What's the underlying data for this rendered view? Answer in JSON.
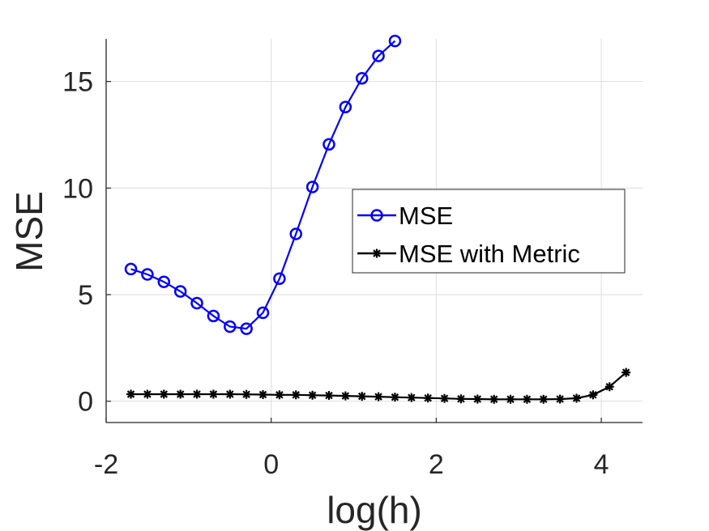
{
  "chart_data": {
    "type": "line",
    "title": "",
    "xlabel": "log(h)",
    "ylabel": "MSE",
    "xlim": [
      -2,
      4.5
    ],
    "ylim": [
      -1,
      17
    ],
    "xticks": [
      -2,
      0,
      2,
      4
    ],
    "yticks": [
      0,
      5,
      10,
      15
    ],
    "xtick_labels": [
      "-2",
      "0",
      "2",
      "4"
    ],
    "ytick_labels": [
      "0",
      "5",
      "10",
      "15"
    ],
    "grid": true,
    "legend_position": "center-right",
    "series": [
      {
        "name": "MSE",
        "color": "#0000ff",
        "marker": "circle",
        "points": [
          [
            -1.7,
            6.2
          ],
          [
            -1.5,
            5.95
          ],
          [
            -1.3,
            5.6
          ],
          [
            -1.1,
            5.15
          ],
          [
            -0.9,
            4.6
          ],
          [
            -0.7,
            4.0
          ],
          [
            -0.5,
            3.5
          ],
          [
            -0.3,
            3.4
          ],
          [
            -0.1,
            4.15
          ],
          [
            0.1,
            5.75
          ],
          [
            0.3,
            7.85
          ],
          [
            0.5,
            10.05
          ],
          [
            0.7,
            12.05
          ],
          [
            0.9,
            13.8
          ],
          [
            1.1,
            15.15
          ],
          [
            1.3,
            16.2
          ],
          [
            1.5,
            16.9
          ]
        ]
      },
      {
        "name": "MSE with Metric",
        "color": "#000000",
        "marker": "asterisk",
        "points": [
          [
            -1.7,
            0.33
          ],
          [
            -1.5,
            0.33
          ],
          [
            -1.3,
            0.33
          ],
          [
            -1.1,
            0.33
          ],
          [
            -0.9,
            0.33
          ],
          [
            -0.7,
            0.33
          ],
          [
            -0.5,
            0.33
          ],
          [
            -0.3,
            0.32
          ],
          [
            -0.1,
            0.31
          ],
          [
            0.1,
            0.3
          ],
          [
            0.3,
            0.3
          ],
          [
            0.5,
            0.28
          ],
          [
            0.7,
            0.27
          ],
          [
            0.9,
            0.25
          ],
          [
            1.1,
            0.23
          ],
          [
            1.3,
            0.21
          ],
          [
            1.5,
            0.19
          ],
          [
            1.7,
            0.17
          ],
          [
            1.9,
            0.15
          ],
          [
            2.1,
            0.13
          ],
          [
            2.3,
            0.11
          ],
          [
            2.5,
            0.1
          ],
          [
            2.7,
            0.09
          ],
          [
            2.9,
            0.09
          ],
          [
            3.1,
            0.09
          ],
          [
            3.3,
            0.09
          ],
          [
            3.5,
            0.1
          ],
          [
            3.7,
            0.14
          ],
          [
            3.9,
            0.3
          ],
          [
            4.1,
            0.68
          ],
          [
            4.3,
            1.35
          ]
        ]
      }
    ]
  }
}
